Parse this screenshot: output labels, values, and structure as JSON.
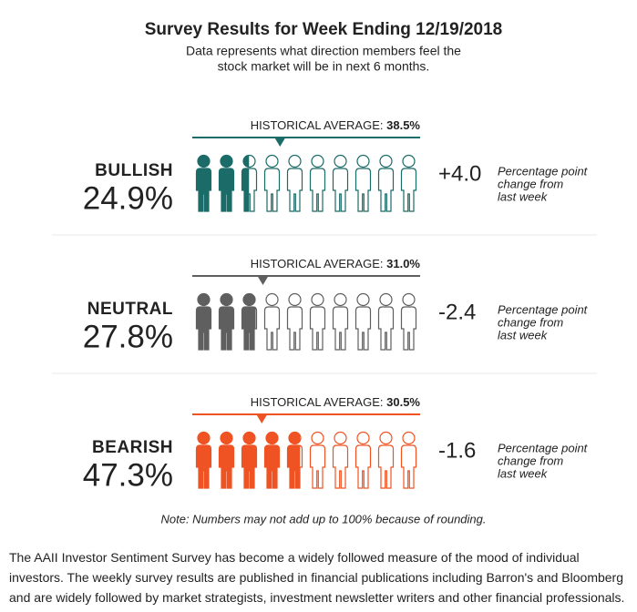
{
  "title": "Survey Results for Week Ending 12/19/2018",
  "subtitle": [
    "Data represents what direction members feel the",
    "stock market will be in next 6 months."
  ],
  "average_caption": "HISTORICAL AVERAGE:",
  "xlim": [
    0,
    100
  ],
  "rows": [
    {
      "name": "BULLISH",
      "value": 24.9,
      "value_label": "24.9%",
      "average": 38.5,
      "average_label": "38.5%",
      "change": "+4.0",
      "change_note": [
        "Percentage point",
        "change from",
        "last week"
      ],
      "color": "#1b6b68",
      "name_color": "#1b6b68"
    },
    {
      "name": "NEUTRAL",
      "value": 27.8,
      "value_label": "27.8%",
      "average": 31.0,
      "average_label": "31.0%",
      "change": "-2.4",
      "change_note": [
        "Percentage point",
        "change from",
        "last week"
      ],
      "color": "#5f5f5f",
      "name_color": "#5f5f5f"
    },
    {
      "name": "BEARISH",
      "value": 47.3,
      "value_label": "47.3%",
      "average": 30.5,
      "average_label": "30.5%",
      "change": "-1.6",
      "change_note": [
        "Percentage point",
        "change from",
        "last week"
      ],
      "color": "#ef5323",
      "name_color": "#c6482a"
    }
  ],
  "note": "Note: Numbers may not add up to 100% because of rounding.",
  "footer": "The AAII Investor Sentiment Survey has become a widely followed measure of the mood of individual investors. The weekly survey results are published in financial publications including Barron's and Bloomberg and are widely followed by market strategists, investment newsletter writers and other financial professionals."
}
